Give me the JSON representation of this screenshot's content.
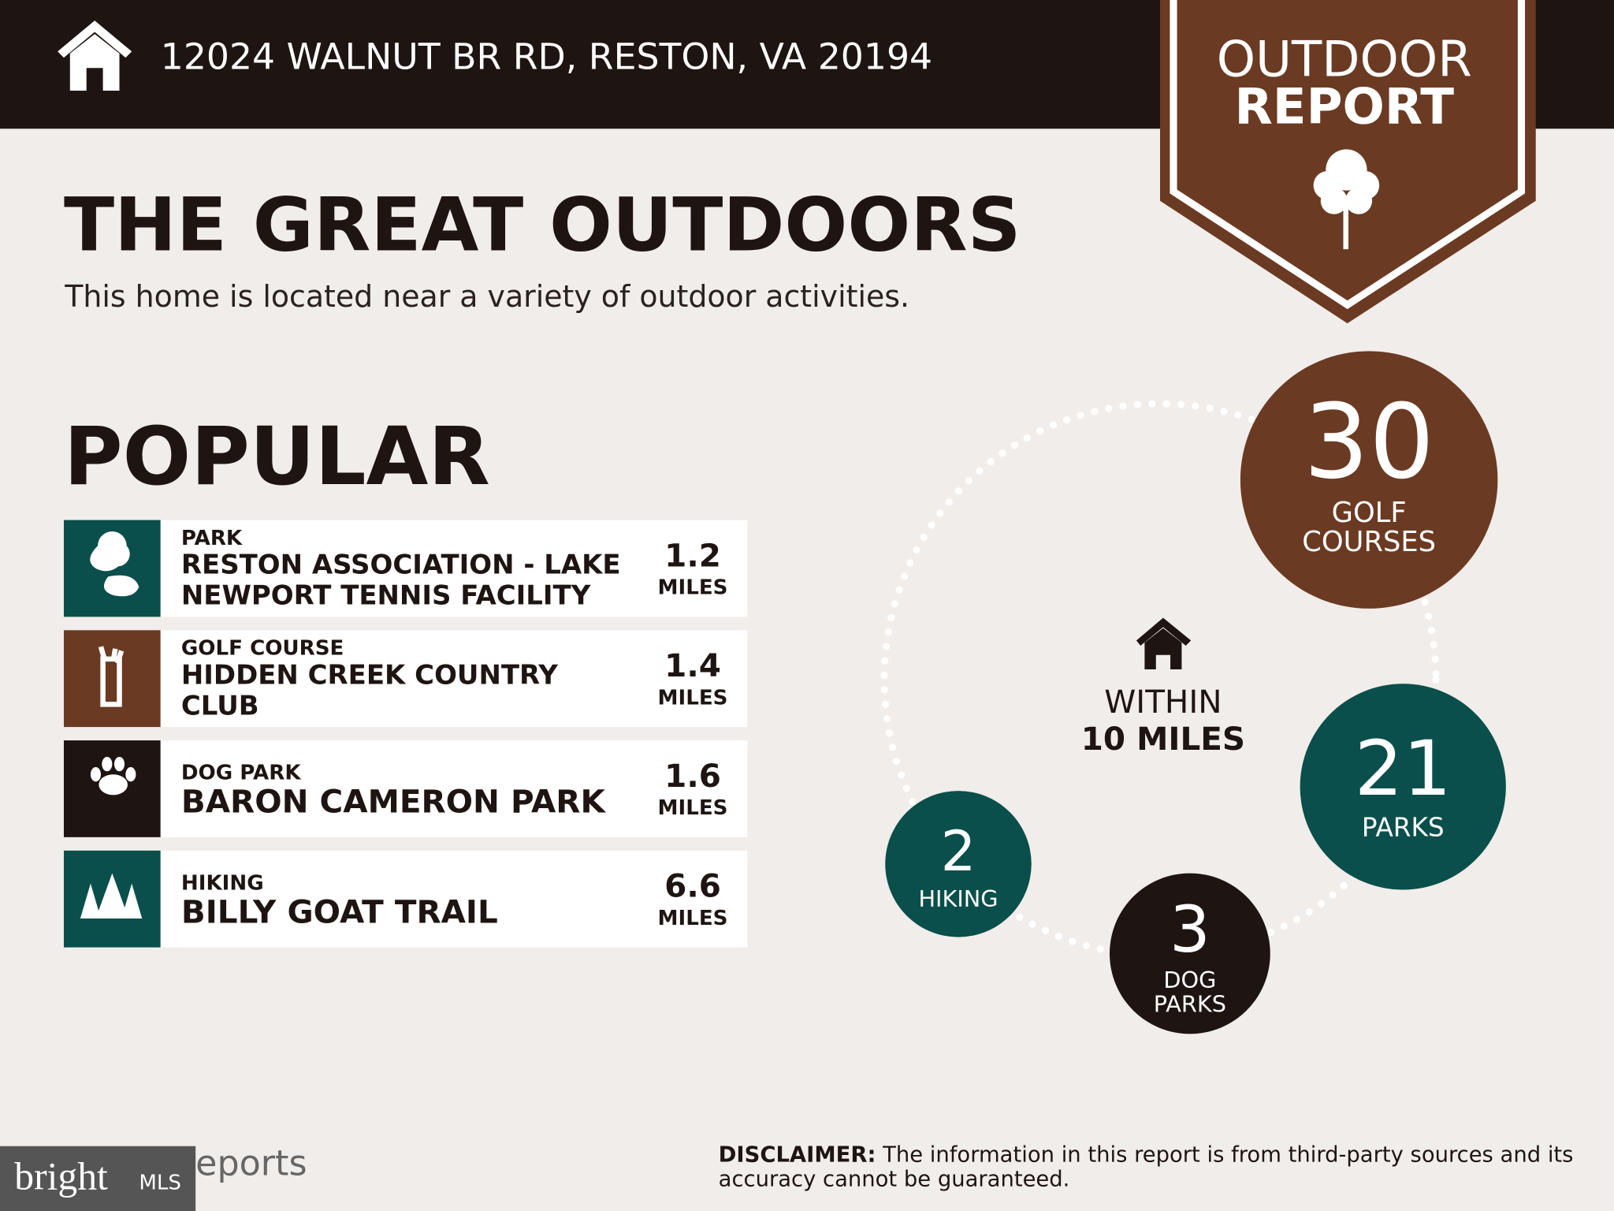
{
  "header": {
    "address": "12024 WALNUT BR RD, RESTON, VA 20194",
    "badge_lines": [
      "OUTDOOR",
      "REPORT"
    ]
  },
  "title": "THE GREAT OUTDOORS",
  "subtitle": "This home is located near a variety of outdoor activities.",
  "popular": {
    "heading": "POPULAR",
    "items": [
      {
        "category": "PARK",
        "name_lines": [
          "RESTON ASSOCIATION - LAKE",
          "NEWPORT TENNIS FACILITY"
        ],
        "distance": 1.2,
        "unit": "MILES"
      },
      {
        "category": "GOLF COURSE",
        "name_lines": [
          "HIDDEN CREEK COUNTRY",
          "CLUB"
        ],
        "distance": 1.4,
        "unit": "MILES"
      },
      {
        "category": "DOG PARK",
        "name_lines": [
          "BARON CAMERON PARK"
        ],
        "distance": 1.6,
        "unit": "MILES"
      },
      {
        "category": "HIKING",
        "name_lines": [
          "BILLY GOAT TRAIL"
        ],
        "distance": 6.6,
        "unit": "MILES"
      }
    ]
  },
  "summary": {
    "within": "WITHIN",
    "radius": "10 MILES",
    "counts": [
      {
        "number": 30,
        "label_lines": [
          "GOLF",
          "COURSES"
        ]
      },
      {
        "number": 21,
        "label_lines": [
          "PARKS"
        ]
      },
      {
        "number": 3,
        "label_lines": [
          "DOG",
          "PARKS"
        ]
      },
      {
        "number": 2,
        "label_lines": [
          "HIKING"
        ]
      }
    ]
  },
  "footer": {
    "logo": "bright",
    "logo_suffix": "MLS",
    "reports": "eports",
    "disclaimer_label": "DISCLAIMER:",
    "disclaimer_lines": [
      " The information in this report is from third-party sources and its",
      "accuracy cannot be guaranteed."
    ]
  }
}
